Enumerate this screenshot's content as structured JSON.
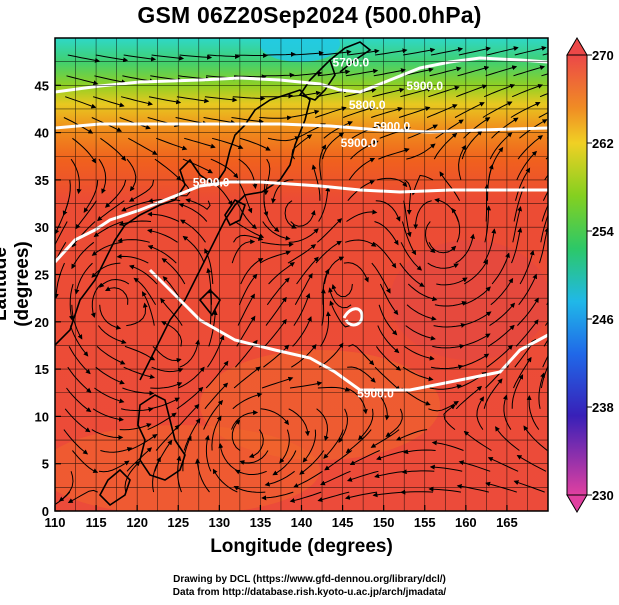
{
  "title": "GSM 06Z20Sep2024 (500.0hPa)",
  "credits": {
    "drawing": "Drawing by DCL (https://www.gfd-dennou.org/library/dcl/)",
    "data": "Data from http://database.rish.kyoto-u.ac.jp/arch/jmadata/"
  },
  "chart_data": {
    "type": "heatmap",
    "title": "GSM 06Z20Sep2024 (500.0hPa)",
    "xlabel": "Longitude (degrees)",
    "ylabel": "Latitude (degrees)",
    "xlim": [
      110,
      170
    ],
    "ylim": [
      0,
      50
    ],
    "x_ticks": [
      "110",
      "115",
      "120",
      "125",
      "130",
      "135",
      "140",
      "145",
      "150",
      "155",
      "160",
      "165"
    ],
    "y_ticks": [
      "0",
      "5",
      "10",
      "15",
      "20",
      "25",
      "30",
      "35",
      "40",
      "45"
    ],
    "grid": true,
    "colorbar": {
      "min": 230,
      "max": 270,
      "position": "right",
      "tick_labels": [
        "270",
        "262",
        "254",
        "246",
        "238",
        "230"
      ],
      "tick_values": [
        270,
        262,
        254,
        246,
        238,
        230
      ],
      "colors": [
        "#e0408c",
        "#3820c8",
        "#2060e8",
        "#20b8e8",
        "#30c860",
        "#90d020",
        "#f0d020",
        "#f09020",
        "#f05a20",
        "#e84848"
      ]
    },
    "contour_labels": [
      "5900.0",
      "5900.0",
      "5800.0",
      "5700.0",
      "5900.0",
      "5900.0",
      "5900.0"
    ],
    "contour_values": [
      5900,
      5800,
      5700
    ],
    "fields": [
      "temperature (color)",
      "wind streamlines",
      "geopotential height (white contours)"
    ]
  }
}
